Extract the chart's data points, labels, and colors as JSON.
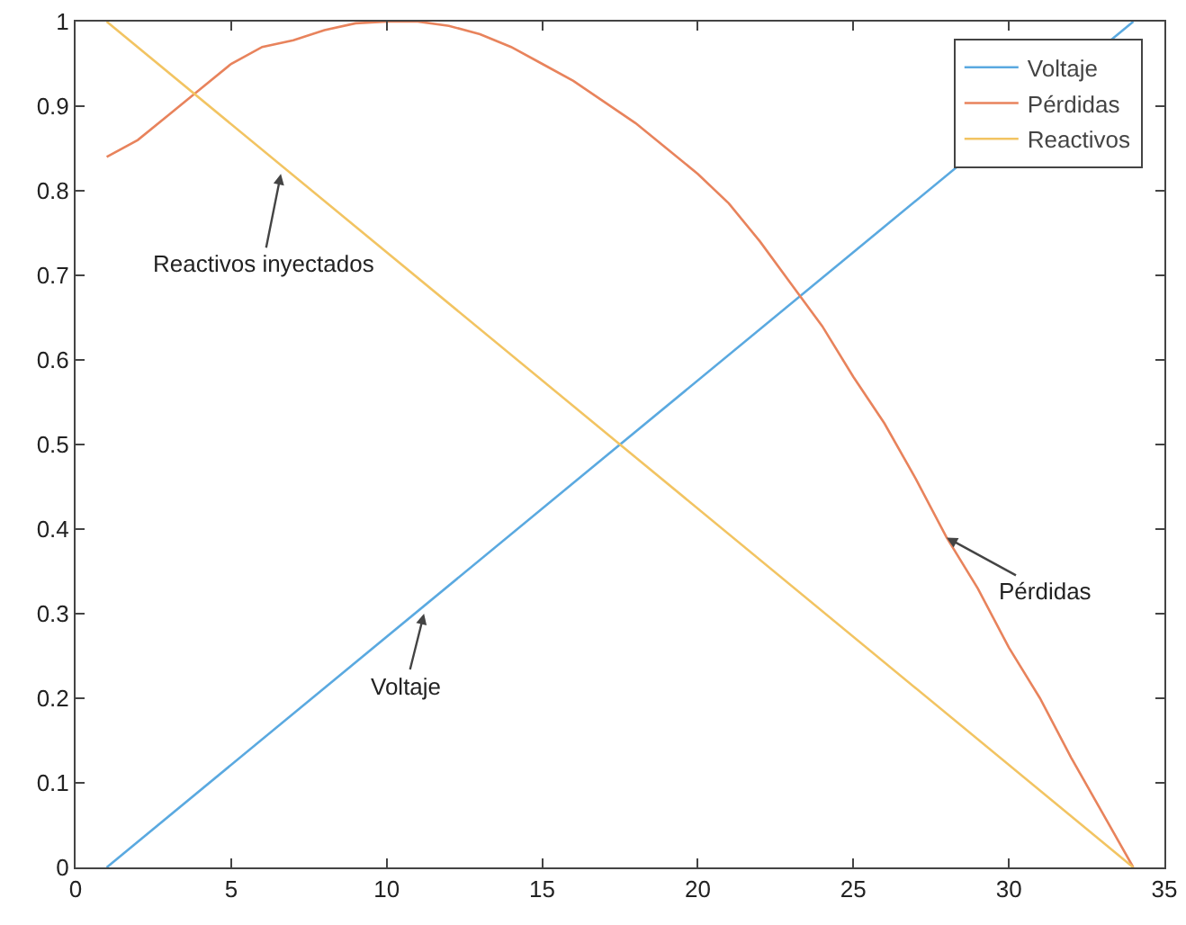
{
  "chart_data": {
    "type": "line",
    "xlim": [
      0,
      35
    ],
    "ylim": [
      0,
      1
    ],
    "xticks": [
      0,
      5,
      10,
      15,
      20,
      25,
      30,
      35
    ],
    "yticks": [
      0,
      0.1,
      0.2,
      0.3,
      0.4,
      0.5,
      0.6,
      0.7,
      0.8,
      0.9,
      1
    ],
    "grid": false,
    "legend": "top right",
    "series": [
      {
        "name": "Voltaje",
        "color": "#5aa9e0",
        "x": [
          1,
          34
        ],
        "values": [
          0,
          1
        ]
      },
      {
        "name": "Pérdidas",
        "color": "#e8835c",
        "x": [
          1,
          2,
          3,
          4,
          5,
          6,
          7,
          8,
          9,
          10,
          11,
          12,
          13,
          14,
          15,
          16,
          17,
          18,
          19,
          20,
          21,
          22,
          23,
          24,
          25,
          26,
          27,
          28,
          29,
          30,
          31,
          32,
          33,
          34
        ],
        "values": [
          0.84,
          0.86,
          0.89,
          0.92,
          0.95,
          0.97,
          0.978,
          0.99,
          0.998,
          1,
          1,
          0.995,
          0.985,
          0.97,
          0.95,
          0.93,
          0.905,
          0.88,
          0.85,
          0.82,
          0.785,
          0.74,
          0.69,
          0.64,
          0.58,
          0.525,
          0.46,
          0.39,
          0.33,
          0.26,
          0.2,
          0.13,
          0.065,
          0
        ]
      },
      {
        "name": "Reactivos",
        "color": "#f2c462",
        "x": [
          1,
          34
        ],
        "values": [
          1,
          0
        ]
      }
    ],
    "annotations": [
      {
        "text": "Reactivos inyectados",
        "x": 6.6,
        "y": 0.82
      },
      {
        "text": "Pérdidas",
        "x": 28,
        "y": 0.39
      },
      {
        "text": "Voltaje",
        "x": 11.2,
        "y": 0.3
      }
    ]
  }
}
